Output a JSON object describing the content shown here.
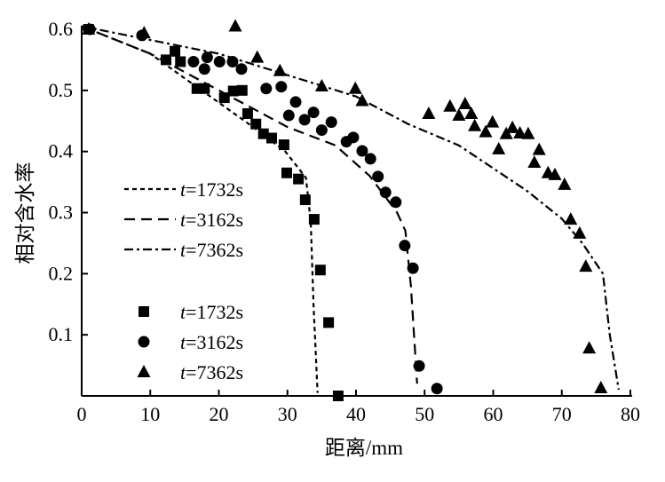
{
  "chart_data": {
    "type": "scatter",
    "title": "",
    "xlabel": "距离/mm",
    "ylabel": "相对含水率",
    "xlim": [
      0,
      80
    ],
    "ylim": [
      0,
      0.6
    ],
    "xticks": [
      "0",
      "10",
      "20",
      "30",
      "40",
      "50",
      "60",
      "70",
      "80"
    ],
    "yticks": [
      "0.1",
      "0.2",
      "0.3",
      "0.4",
      "0.5",
      "0.6"
    ],
    "grid": false,
    "legend_placement": "left",
    "lines": [
      {
        "name": "t=1732s",
        "style": "dotted",
        "x": [
          0,
          10,
          15,
          20,
          25,
          29.7,
          32.7,
          33.4,
          33.8,
          34.4
        ],
        "y": [
          0.605,
          0.56,
          0.52,
          0.48,
          0.44,
          0.4,
          0.357,
          0.285,
          0.15,
          0.005
        ]
      },
      {
        "name": "t=3162s",
        "style": "dashed",
        "x": [
          0,
          10,
          20,
          30,
          37,
          42,
          46,
          47.2,
          48,
          48.9
        ],
        "y": [
          0.605,
          0.56,
          0.5,
          0.44,
          0.41,
          0.36,
          0.3,
          0.27,
          0.18,
          0.02
        ]
      },
      {
        "name": "t=7362s",
        "style": "dashdot",
        "x": [
          0,
          20,
          40,
          47.6,
          55,
          65,
          70,
          73,
          76,
          77,
          78.3
        ],
        "y": [
          0.605,
          0.56,
          0.49,
          0.445,
          0.41,
          0.335,
          0.29,
          0.25,
          0.2,
          0.1,
          0.01
        ]
      }
    ],
    "points": [
      {
        "name": "t=1732s",
        "marker": "square",
        "x": [
          1,
          12.3,
          13.6,
          14.4,
          16.8,
          17.9,
          20.8,
          22.1,
          23.4,
          24.2,
          25.4,
          26.5,
          27.7,
          29.5,
          29.9,
          31.6,
          32.6,
          33.9,
          34.8,
          36,
          37.4
        ],
        "y": [
          0.6,
          0.55,
          0.564,
          0.547,
          0.503,
          0.503,
          0.488,
          0.499,
          0.5,
          0.462,
          0.445,
          0.429,
          0.422,
          0.411,
          0.365,
          0.355,
          0.321,
          0.289,
          0.206,
          0.12,
          0
        ]
      },
      {
        "name": "t=3162s",
        "marker": "circle",
        "x": [
          1.2,
          8.8,
          16.3,
          18.3,
          17.9,
          20.1,
          22,
          23.3,
          26.9,
          29.1,
          31.2,
          30.2,
          32.5,
          33.8,
          35,
          36.4,
          38.6,
          39.6,
          40.9,
          42.1,
          43.2,
          44.3,
          45.8,
          47.1,
          48.3,
          49.2,
          51.8
        ],
        "y": [
          0.6,
          0.59,
          0.547,
          0.554,
          0.535,
          0.547,
          0.547,
          0.535,
          0.503,
          0.506,
          0.481,
          0.459,
          0.452,
          0.464,
          0.435,
          0.448,
          0.416,
          0.423,
          0.401,
          0.388,
          0.359,
          0.333,
          0.317,
          0.246,
          0.209,
          0.049,
          0.012
        ]
      },
      {
        "name": "t=7362s",
        "marker": "triangle",
        "x": [
          1,
          9.1,
          22.4,
          25.6,
          28.9,
          35,
          39.9,
          40.9,
          50.6,
          53.7,
          55.9,
          55,
          56.8,
          57.3,
          58.9,
          59.9,
          60.8,
          61.9,
          62.8,
          63.9,
          65.1,
          66.7,
          66,
          68,
          69,
          70.4,
          71.3,
          72.6,
          73.5,
          74,
          75.7
        ],
        "y": [
          0.6,
          0.594,
          0.605,
          0.554,
          0.532,
          0.507,
          0.503,
          0.483,
          0.462,
          0.474,
          0.478,
          0.459,
          0.462,
          0.442,
          0.432,
          0.448,
          0.404,
          0.429,
          0.439,
          0.43,
          0.429,
          0.403,
          0.382,
          0.365,
          0.362,
          0.346,
          0.289,
          0.266,
          0.212,
          0.078,
          0.013
        ]
      }
    ]
  }
}
